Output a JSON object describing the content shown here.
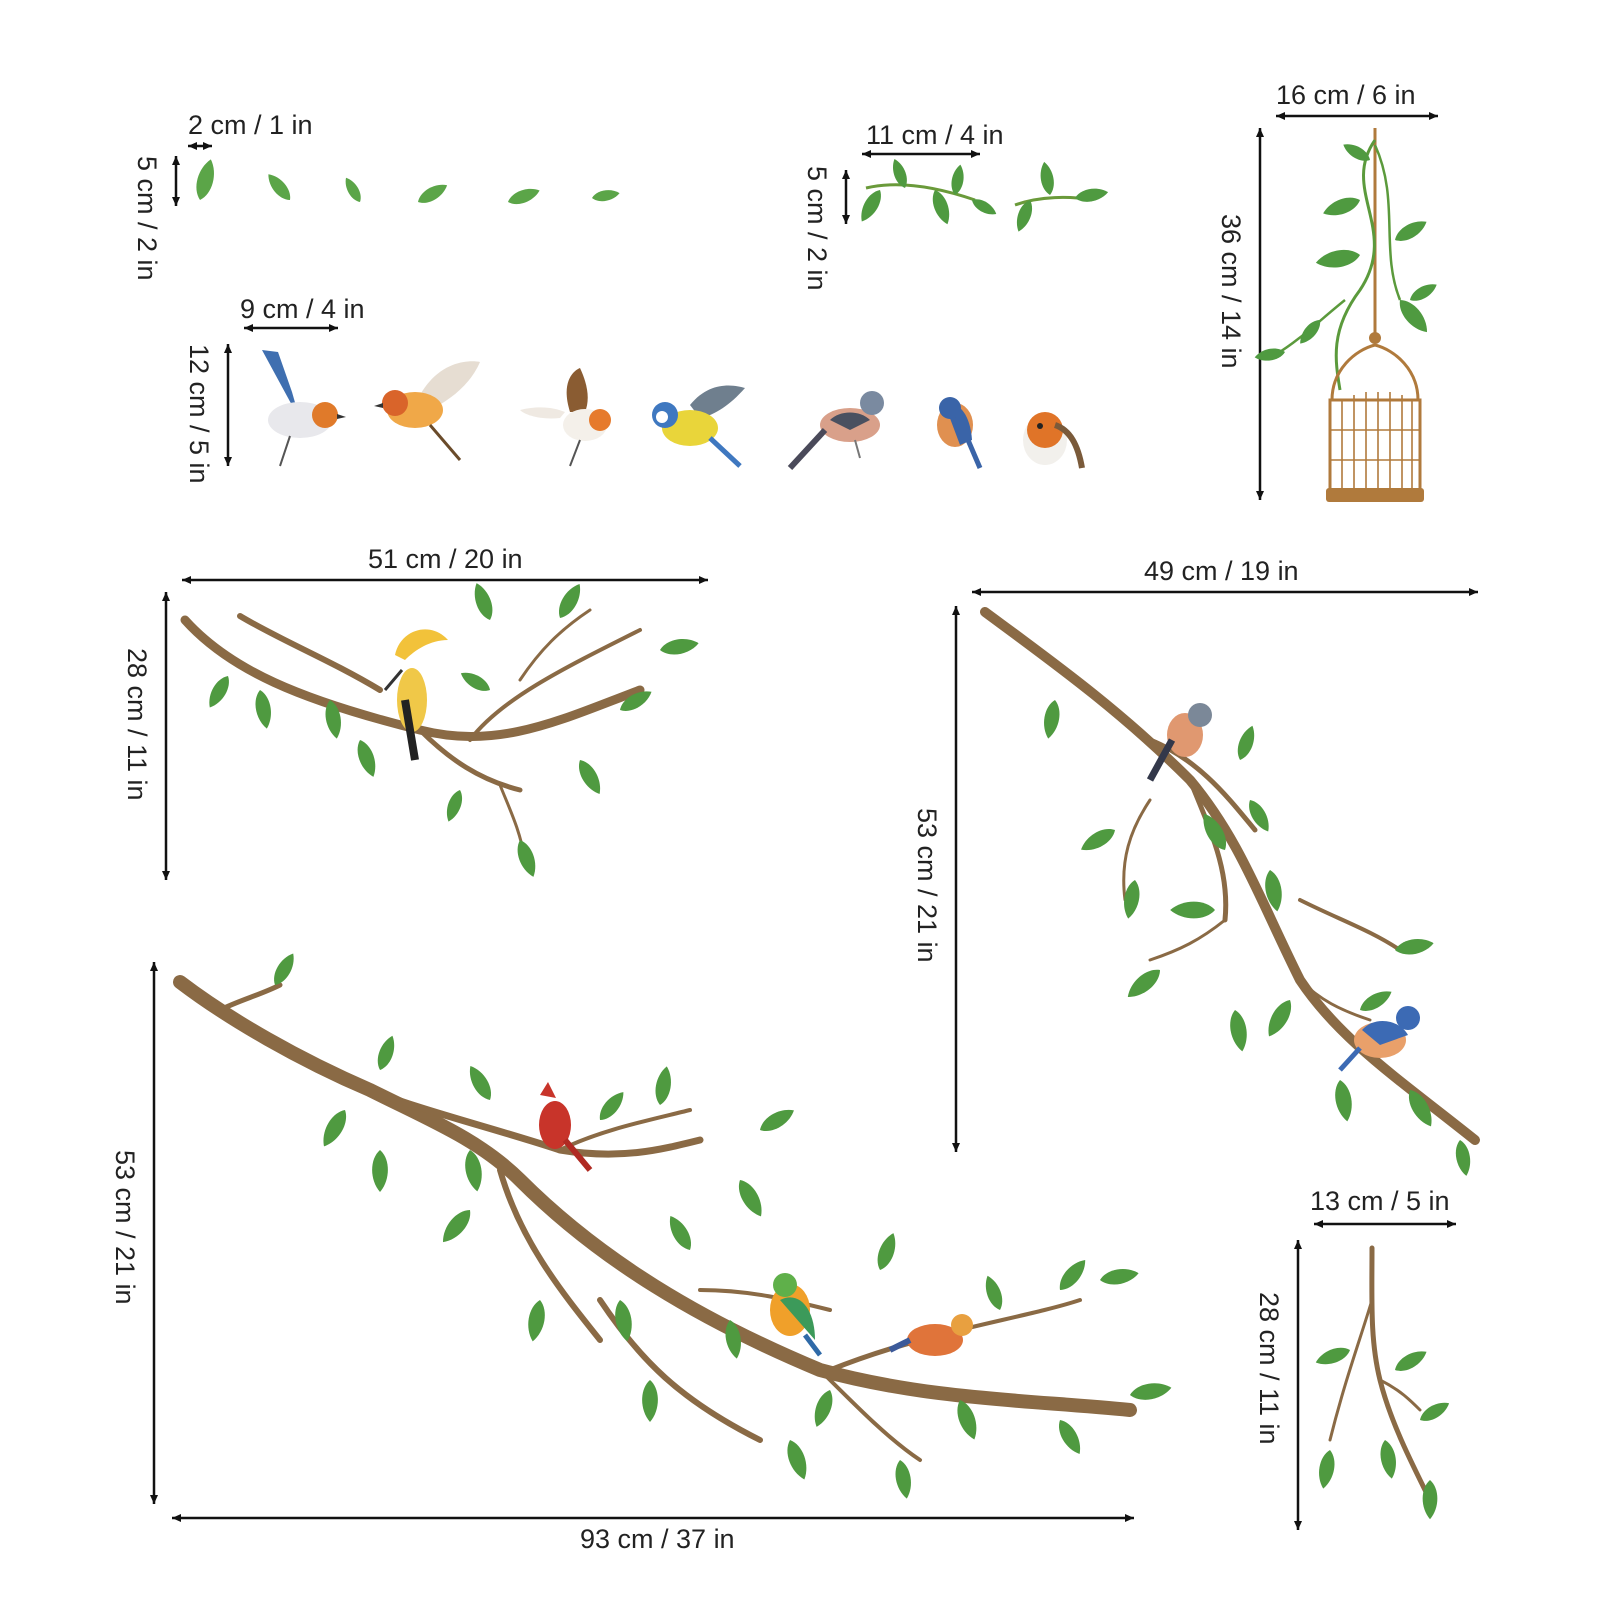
{
  "dimensions": {
    "small_leaves_width": "2 cm / 1 in",
    "small_leaves_height": "5 cm / 2 in",
    "leaf_sprigs_width": "11 cm / 4 in",
    "leaf_sprigs_height": "5 cm / 2 in",
    "birdcage_width": "16 cm / 6 in",
    "birdcage_height": "36 cm / 14 in",
    "birds_width": "9 cm / 4 in",
    "birds_height": "12 cm / 5 in",
    "branch_top_left_width": "51 cm / 20 in",
    "branch_top_left_height": "28 cm / 11 in",
    "branch_right_width": "49 cm / 19 in",
    "branch_right_height": "53 cm / 21 in",
    "branch_large_width": "93 cm / 37 in",
    "branch_large_height": "53 cm / 21 in",
    "twig_width": "13 cm / 5 in",
    "twig_height": "28 cm / 11 in"
  },
  "palette": {
    "leaf": "#5ba548",
    "leaf_dark": "#2f7a32",
    "branch": "#8a6a45",
    "cage": "#b07a3c",
    "dimension_line": "#111111"
  }
}
